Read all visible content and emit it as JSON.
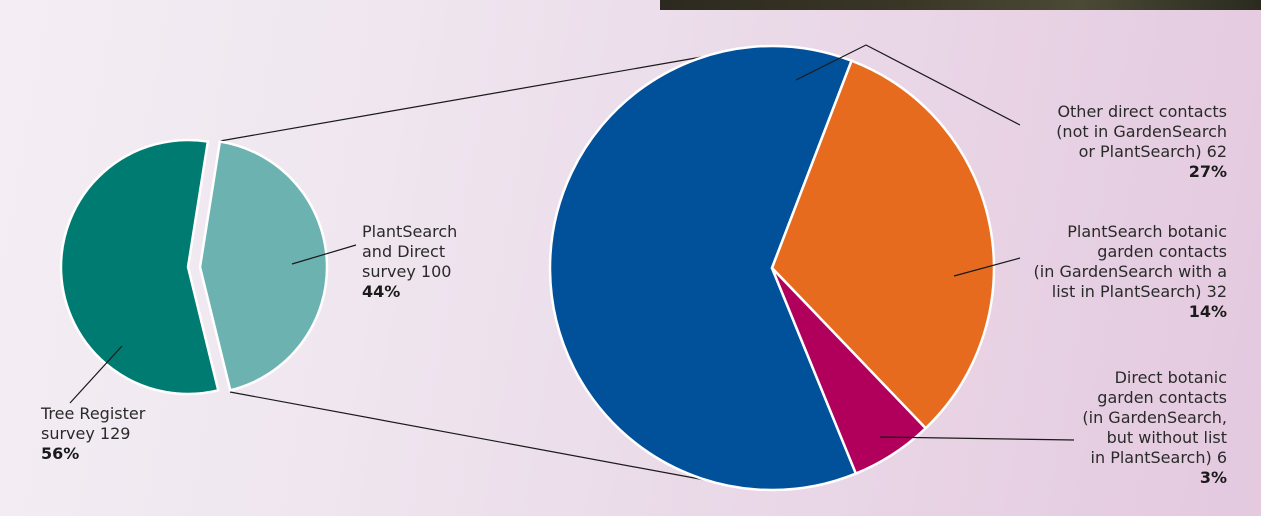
{
  "chart_data": [
    {
      "type": "pie",
      "slices": [
        {
          "label_lines": [
            "Tree Register",
            "survey 129"
          ],
          "value": 129,
          "percent_label": "56%",
          "color": "#007b72"
        },
        {
          "label_lines": [
            "PlantSearch",
            "and Direct",
            "survey 100"
          ],
          "value": 100,
          "percent_label": "44%",
          "color": "#6cb2b1"
        }
      ]
    },
    {
      "type": "pie",
      "slices": [
        {
          "label_lines": [
            "Other direct contacts",
            "(not in GardenSearch",
            "or PlantSearch) 62"
          ],
          "value": 62,
          "percent_label": "27%",
          "color": "#01519a"
        },
        {
          "label_lines": [
            "PlantSearch botanic",
            "garden contacts",
            "(in GardenSearch with a",
            "list in PlantSearch) 32"
          ],
          "value": 32,
          "percent_label": "14%",
          "color": "#e76b1f"
        },
        {
          "label_lines": [
            "Direct botanic",
            "garden contacts",
            "(in GardenSearch,",
            "but without list",
            "in PlantSearch) 6"
          ],
          "value": 6,
          "percent_label": "3%",
          "color": "#b0005b"
        }
      ]
    }
  ]
}
